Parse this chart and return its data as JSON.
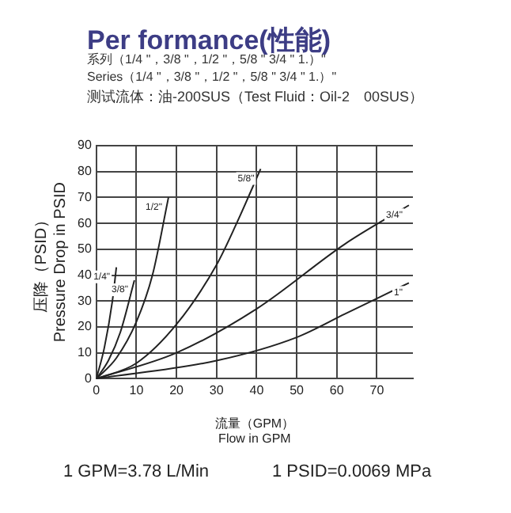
{
  "chart_data": {
    "type": "line",
    "title": "Per formance(性能)",
    "annotations": [
      "系列（1/4 \"，3/8 \"，1/2 \"，5/8 \" 3/4 \"  1.）\"",
      "Series（1/4 \"，3/8 \"，1/2 \"，5/8 \" 3/4 \"  1.）\"",
      "测试流体：油-200SUS（Test Fluid：Oil-2　00SUS）",
      "1 GPM=3.78 L/Min",
      "1 PSID=0.0069 MPa"
    ],
    "xlabel": "流量（GPM）\nFlow in GPM",
    "ylabel": "压降（PSID）\nPressure Drop in PSID",
    "xlim": [
      0,
      79
    ],
    "xticks": [
      0,
      10,
      20,
      30,
      40,
      50,
      60,
      70
    ],
    "ylim": [
      0,
      90
    ],
    "yticks": [
      0,
      10,
      20,
      30,
      40,
      50,
      60,
      70,
      80,
      90
    ],
    "grid": true,
    "marker": "none",
    "line_style": "solid",
    "series": [
      {
        "name": "1/4\"",
        "color": "#222222",
        "x": [
          0,
          2,
          4,
          5
        ],
        "values": [
          0,
          12,
          30,
          43
        ]
      },
      {
        "name": "3/8\"",
        "color": "#222222",
        "x": [
          0,
          3,
          6,
          9.5
        ],
        "values": [
          0,
          7,
          18,
          38
        ]
      },
      {
        "name": "1/2\"",
        "color": "#222222",
        "x": [
          0,
          5,
          10,
          14,
          18
        ],
        "values": [
          0,
          8,
          22,
          40,
          70
        ]
      },
      {
        "name": "5/8\"",
        "color": "#222222",
        "x": [
          0,
          10,
          20,
          30,
          35,
          41
        ],
        "values": [
          0,
          6,
          21,
          44,
          60,
          81
        ]
      },
      {
        "name": "3/4\"",
        "color": "#222222",
        "x": [
          0,
          20,
          40,
          62,
          78
        ],
        "values": [
          0,
          10,
          27,
          52,
          67
        ]
      },
      {
        "name": "1\"",
        "color": "#222222",
        "x": [
          0,
          30,
          50,
          62,
          78
        ],
        "values": [
          0,
          7,
          16,
          25,
          37
        ]
      }
    ]
  }
}
